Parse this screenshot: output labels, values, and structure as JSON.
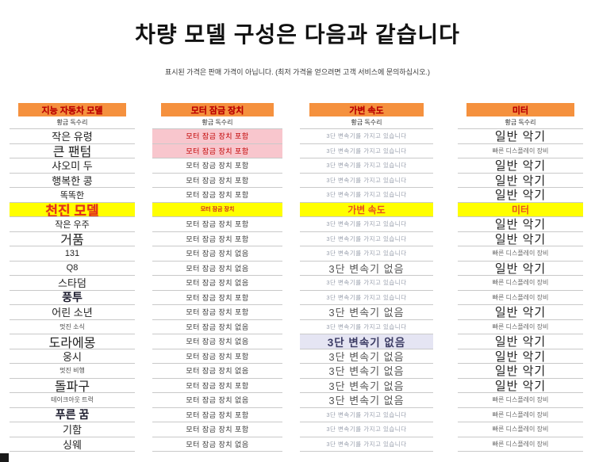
{
  "page": {
    "title": "차량 모델 구성은 다음과 같습니다",
    "subtitle": "표시된 가격은 판매 가격이 아닙니다. (최저 가격을 얻으려면 고객 서비스에 문의하십시오.)"
  },
  "colors": {
    "header_bg": "#F5913E",
    "header_text": "#C00000",
    "highlight_yellow": "#FFFF00",
    "highlight_pink": "#F8C6CD",
    "highlight_blue": "#E5E5F3",
    "row_border": "#C9C9C9"
  },
  "columns": [
    {
      "id": "model",
      "header": "지능 자동차 모델",
      "subheader": "황금 독수리",
      "rows": [
        {
          "text": "작은 유령",
          "variant": "md"
        },
        {
          "text": "큰 팬텀",
          "variant": "lg"
        },
        {
          "text": "샤오미 두",
          "variant": "md"
        },
        {
          "text": "행복한 콩",
          "variant": "md"
        },
        {
          "text": "똑똑한",
          "variant": "sm"
        },
        {
          "text": "천진 모델",
          "variant": "hl-yellow ylg"
        },
        {
          "text": "작은 우주",
          "variant": "sm"
        },
        {
          "text": "거품",
          "variant": "lg"
        },
        {
          "text": "131",
          "variant": "sm"
        },
        {
          "text": "Q8",
          "variant": "sm"
        },
        {
          "text": "스타덤",
          "variant": "md"
        },
        {
          "text": "풍투",
          "variant": "b"
        },
        {
          "text": "어린 소년",
          "variant": "md"
        },
        {
          "text": "멋진 소식",
          "variant": "xs"
        },
        {
          "text": "도라에몽",
          "variant": "lg"
        },
        {
          "text": "웅시",
          "variant": "md"
        },
        {
          "text": "멋진 비행",
          "variant": "xs"
        },
        {
          "text": "돌파구",
          "variant": "lg"
        },
        {
          "text": "테이크아웃 트럭",
          "variant": "xs"
        },
        {
          "text": "푸른 꿈",
          "variant": "b"
        },
        {
          "text": "기함",
          "variant": "md"
        },
        {
          "text": "싱웨",
          "variant": "md"
        }
      ]
    },
    {
      "id": "motor-lock",
      "header": "모터 잠금 장치",
      "subheader": "황금 독수리",
      "rows": [
        {
          "text": "모터 잠금 장치 포함",
          "variant": "opt hl-pink"
        },
        {
          "text": "모터 잠금 장치 포함",
          "variant": "opt hl-pink"
        },
        {
          "text": "모터 잠금 장치 포함",
          "variant": "opt"
        },
        {
          "text": "모터 잠금 장치 포함",
          "variant": "opt"
        },
        {
          "text": "모터 잠금 장치 포함",
          "variant": "opt"
        },
        {
          "text": "모터 잠금 장치",
          "variant": "hl-yellow yxs"
        },
        {
          "text": "모터 잠금 장치 포함",
          "variant": "opt"
        },
        {
          "text": "모터 잠금 장치 포함",
          "variant": "opt"
        },
        {
          "text": "모터 잠금 장치 없음",
          "variant": "opt"
        },
        {
          "text": "모터 잠금 장치 없음",
          "variant": "opt"
        },
        {
          "text": "모터 잠금 장치 없음",
          "variant": "opt"
        },
        {
          "text": "모터 잠금 장치 포함",
          "variant": "opt"
        },
        {
          "text": "모터 잠금 장치 포함",
          "variant": "opt"
        },
        {
          "text": "모터 잠금 장치 없음",
          "variant": "opt"
        },
        {
          "text": "모터 잠금 장치 없음",
          "variant": "opt"
        },
        {
          "text": "모터 잠금 장치 포함",
          "variant": "opt"
        },
        {
          "text": "모터 잠금 장치 없음",
          "variant": "opt"
        },
        {
          "text": "모터 잠금 장치 포함",
          "variant": "opt"
        },
        {
          "text": "모터 잠금 장치 없음",
          "variant": "opt"
        },
        {
          "text": "모터 잠금 장치 포함",
          "variant": "opt"
        },
        {
          "text": "모터 잠금 장치 포함",
          "variant": "opt"
        },
        {
          "text": "모터 잠금 장치 없음",
          "variant": "opt"
        }
      ]
    },
    {
      "id": "variable-speed",
      "header": "가변 속도",
      "subheader": "황금 독수리",
      "rows": [
        {
          "text": "3단 변속기를 가지고 있습니다",
          "variant": "gear-have"
        },
        {
          "text": "3단 변속기를 가지고 있습니다",
          "variant": "gear-have"
        },
        {
          "text": "3단 변속기를 가지고 있습니다",
          "variant": "gear-have"
        },
        {
          "text": "3단 변속기를 가지고 있습니다",
          "variant": "gear-have"
        },
        {
          "text": "3단 변속기를 가지고 있습니다",
          "variant": "gear-have"
        },
        {
          "text": "가변 속도",
          "variant": "hl-yellow ymd"
        },
        {
          "text": "3단 변속기를 가지고 있습니다",
          "variant": "gear-have"
        },
        {
          "text": "3단 변속기를 가지고 있습니다",
          "variant": "gear-have"
        },
        {
          "text": "3단 변속기를 가지고 있습니다",
          "variant": "gear-have"
        },
        {
          "text": "3단 변속기 없음",
          "variant": "gear-none"
        },
        {
          "text": "3단 변속기를 가지고 있습니다",
          "variant": "gear-have"
        },
        {
          "text": "3단 변속기를 가지고 있습니다",
          "variant": "gear-have"
        },
        {
          "text": "3단 변속기 없음",
          "variant": "gear-none"
        },
        {
          "text": "3단 변속기를 가지고 있습니다",
          "variant": "gear-have"
        },
        {
          "text": "3단 변속기 없음",
          "variant": "gear-none hl-blue"
        },
        {
          "text": "3단 변속기 없음",
          "variant": "gear-none"
        },
        {
          "text": "3단 변속기 없음",
          "variant": "gear-none"
        },
        {
          "text": "3단 변속기 없음",
          "variant": "gear-none"
        },
        {
          "text": "3단 변속기 없음",
          "variant": "gear-none"
        },
        {
          "text": "3단 변속기를 가지고 있습니다",
          "variant": "gear-have"
        },
        {
          "text": "3단 변속기를 가지고 있습니다",
          "variant": "gear-have"
        },
        {
          "text": "3단 변속기를 가지고 있습니다",
          "variant": "gear-have"
        }
      ]
    },
    {
      "id": "meter",
      "header": "미터",
      "subheader": "황금 독수리",
      "rows": [
        {
          "text": "일반 악기",
          "variant": "meter-lg"
        },
        {
          "text": "빠른 디스플레이 장비",
          "variant": "meter-xs"
        },
        {
          "text": "일반 악기",
          "variant": "meter-lg"
        },
        {
          "text": "일반 악기",
          "variant": "meter-lg"
        },
        {
          "text": "일반 악기",
          "variant": "meter-lg"
        },
        {
          "text": "미터",
          "variant": "hl-yellow ymd"
        },
        {
          "text": "일반 악기",
          "variant": "meter-lg"
        },
        {
          "text": "일반 악기",
          "variant": "meter-lg"
        },
        {
          "text": "빠른 디스플레이 장비",
          "variant": "meter-xs"
        },
        {
          "text": "일반 악기",
          "variant": "meter-lg"
        },
        {
          "text": "빠른 디스플레이 장비",
          "variant": "meter-xs"
        },
        {
          "text": "빠른 디스플레이 장비",
          "variant": "meter-xs"
        },
        {
          "text": "일반 악기",
          "variant": "meter-lg"
        },
        {
          "text": "빠른 디스플레이 장비",
          "variant": "meter-xs"
        },
        {
          "text": "일반 악기",
          "variant": "meter-lg"
        },
        {
          "text": "일반 악기",
          "variant": "meter-lg"
        },
        {
          "text": "일반 악기",
          "variant": "meter-lg"
        },
        {
          "text": "일반 악기",
          "variant": "meter-lg"
        },
        {
          "text": "빠른 디스플레이 장비",
          "variant": "meter-xs"
        },
        {
          "text": "빠른 디스플레이 장비",
          "variant": "meter-xs"
        },
        {
          "text": "빠른 디스플레이 장비",
          "variant": "meter-xs"
        },
        {
          "text": "빠른 디스플레이 장비",
          "variant": "meter-xs"
        }
      ]
    }
  ]
}
